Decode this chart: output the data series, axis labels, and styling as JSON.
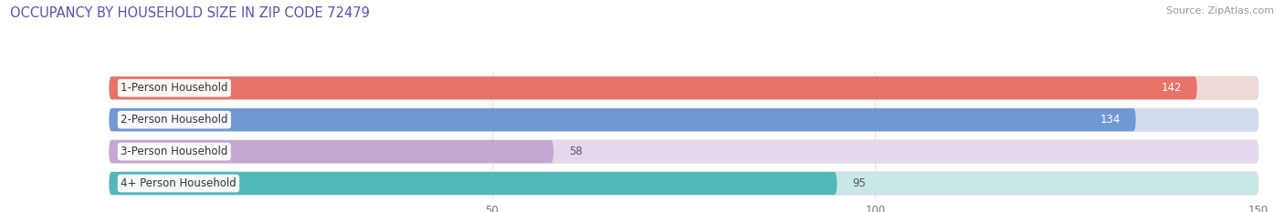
{
  "title": "OCCUPANCY BY HOUSEHOLD SIZE IN ZIP CODE 72479",
  "source": "Source: ZipAtlas.com",
  "categories": [
    "1-Person Household",
    "2-Person Household",
    "3-Person Household",
    "4+ Person Household"
  ],
  "values": [
    142,
    134,
    58,
    95
  ],
  "bar_colors": [
    "#E8736A",
    "#7099D4",
    "#C4A8D0",
    "#52B8BC"
  ],
  "bar_background_colors": [
    "#EFD8D6",
    "#D3DCF0",
    "#E6D8EC",
    "#C8E8E8"
  ],
  "xlim": [
    0,
    150
  ],
  "xticks": [
    50,
    100,
    150
  ],
  "title_color": "#5555AA",
  "source_color": "#999999",
  "background_color": "#FFFFFF",
  "title_fontsize": 10.5,
  "source_fontsize": 8,
  "label_fontsize": 8.5,
  "value_fontsize": 8.5,
  "bar_height": 0.72,
  "bar_rounding": 0.35
}
